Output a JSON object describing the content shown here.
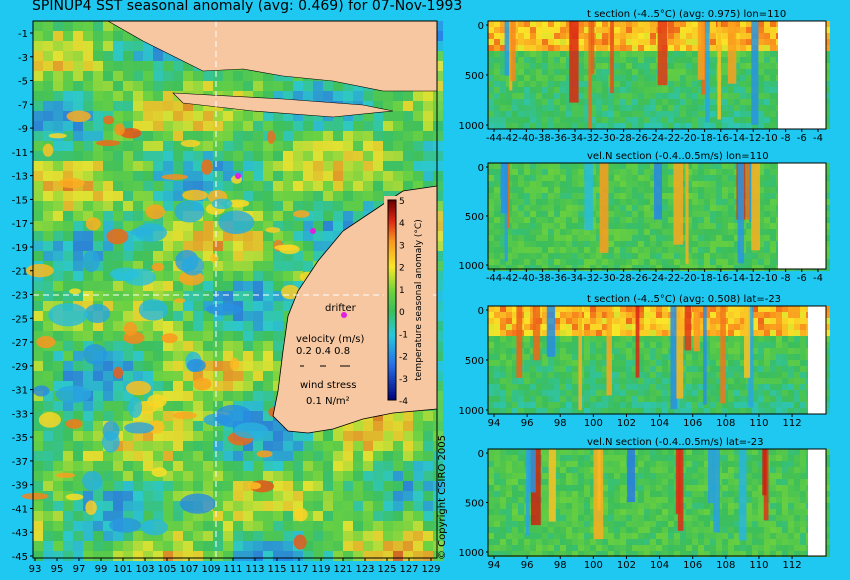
{
  "main_map": {
    "title": "SPINUP4 SST seasonal anomaly (avg: 0.469) for 07-Nov-1993",
    "lon_ticks": [
      "93",
      "95",
      "97",
      "99",
      "101",
      "103",
      "105",
      "107",
      "109",
      "111",
      "113",
      "115",
      "117",
      "119",
      "121",
      "123",
      "125",
      "127",
      "129"
    ],
    "lat_ticks": [
      "-1",
      "-3",
      "-5",
      "-7",
      "-9",
      "-11",
      "-13",
      "-15",
      "-17",
      "-19",
      "-21",
      "-23",
      "-25",
      "-27",
      "-29",
      "-31",
      "-33",
      "-35",
      "-37",
      "-39",
      "-41",
      "-43",
      "-45"
    ],
    "colorbar": {
      "label": "temperature seasonal anomaly (°C)",
      "ticks": [
        "5",
        "4",
        "3",
        "2",
        "1",
        "0",
        "-1",
        "-2",
        "-3",
        "-4"
      ]
    },
    "legend": {
      "drifter": "drifter",
      "velocity_title": "velocity (m/s)",
      "velocity_scale": "0.2 0.4 0.8",
      "wind_title": "wind stress",
      "wind_scale": "0.1 N/m²"
    },
    "copyright": "© Copyright CSIRO 2005"
  },
  "sections": [
    {
      "title": "t section (-4..5°C) (avg: 0.975) lon=110",
      "kind": "temp",
      "depth_ticks": [
        "0",
        "500",
        "1000"
      ],
      "x_ticks": [
        "-44",
        "-42",
        "-40",
        "-38",
        "-36",
        "-34",
        "-32",
        "-30",
        "-28",
        "-26",
        "-24",
        "-22",
        "-20",
        "-18",
        "-16",
        "-14",
        "-12",
        "-10",
        "-8",
        "-6",
        "-4"
      ]
    },
    {
      "title": "vel.N section (-0.4..0.5m/s) lon=110",
      "kind": "vel",
      "depth_ticks": [
        "0",
        "500",
        "1000"
      ],
      "x_ticks": [
        "-44",
        "-42",
        "-40",
        "-38",
        "-36",
        "-34",
        "-32",
        "-30",
        "-28",
        "-26",
        "-24",
        "-22",
        "-20",
        "-18",
        "-16",
        "-14",
        "-12",
        "-10",
        "-8",
        "-6",
        "-4"
      ]
    },
    {
      "title": "t section (-4..5°C) (avg: 0.508) lat=-23",
      "kind": "temp",
      "depth_ticks": [
        "0",
        "500",
        "1000"
      ],
      "x_ticks": [
        "94",
        "96",
        "98",
        "100",
        "102",
        "104",
        "106",
        "108",
        "110",
        "112"
      ]
    },
    {
      "title": "vel.N section (-0.4..0.5m/s) lat=-23",
      "kind": "vel",
      "depth_ticks": [
        "0",
        "500",
        "1000"
      ],
      "x_ticks": [
        "94",
        "96",
        "98",
        "100",
        "102",
        "104",
        "106",
        "108",
        "110",
        "112"
      ]
    }
  ],
  "chart_data": [
    {
      "type": "heatmap",
      "title": "SPINUP4 SST seasonal anomaly (avg: 0.469) for 07-Nov-1993",
      "xlim": [
        93,
        130
      ],
      "ylim": [
        -45,
        0
      ],
      "clim": [
        -4,
        5
      ],
      "colorbar_label": "temperature seasonal anomaly (°C)"
    },
    {
      "type": "heatmap",
      "title": "t section (-4..5°C) (avg: 0.975) lon=110",
      "xlim": [
        -45,
        -3
      ],
      "ylim": [
        0,
        1050
      ],
      "clim": [
        -4,
        5
      ]
    },
    {
      "type": "heatmap",
      "title": "vel.N section (-0.4..0.5m/s) lon=110",
      "xlim": [
        -45,
        -3
      ],
      "ylim": [
        0,
        1050
      ],
      "clim": [
        -0.4,
        0.5
      ]
    },
    {
      "type": "heatmap",
      "title": "t section (-4..5°C) (avg: 0.508) lat=-23",
      "xlim": [
        93,
        114
      ],
      "ylim": [
        0,
        1050
      ],
      "clim": [
        -4,
        5
      ]
    },
    {
      "type": "heatmap",
      "title": "vel.N section (-0.4..0.5m/s) lat=-23",
      "xlim": [
        93,
        114
      ],
      "ylim": [
        0,
        1050
      ],
      "clim": [
        -0.4,
        0.5
      ]
    }
  ]
}
